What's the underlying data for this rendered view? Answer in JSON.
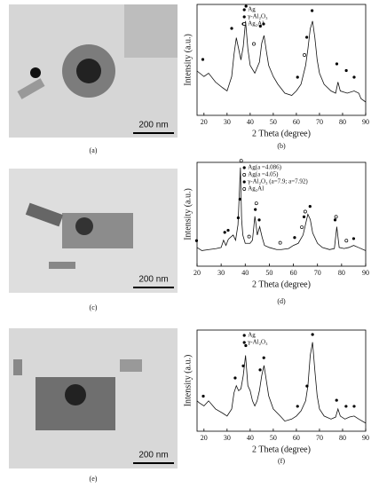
{
  "images": [
    {
      "scale_bar": "200 nm",
      "label": "(a)"
    },
    {
      "scale_bar": "200 nm",
      "label": "(c)"
    },
    {
      "scale_bar": "200 nm",
      "label": "(e)"
    }
  ],
  "chart_data": [
    {
      "type": "line",
      "label": "(b)",
      "xlabel": "2 Theta (degree)",
      "ylabel": "Intensity (a.u.)",
      "xlim": [
        17,
        90
      ],
      "ylim": [
        0,
        100
      ],
      "xticks": [
        20,
        30,
        40,
        50,
        60,
        70,
        80,
        90
      ],
      "color": "#111111",
      "legend": "upper center",
      "x": [
        17,
        20,
        22,
        25,
        28,
        30,
        32,
        33,
        34,
        35,
        36,
        37,
        38,
        39,
        40,
        42,
        44,
        45,
        46,
        47,
        48,
        50,
        52,
        55,
        58,
        60,
        62,
        64,
        65,
        66,
        67,
        68,
        69,
        70,
        72,
        75,
        77,
        78,
        79,
        82,
        85,
        87,
        88,
        90
      ],
      "values": [
        40,
        35,
        38,
        30,
        25,
        22,
        35,
        55,
        70,
        60,
        50,
        62,
        85,
        60,
        45,
        38,
        48,
        65,
        72,
        58,
        45,
        35,
        28,
        20,
        18,
        22,
        28,
        45,
        60,
        78,
        85,
        70,
        50,
        38,
        28,
        22,
        20,
        30,
        22,
        20,
        22,
        20,
        15,
        12
      ],
      "series": [
        {
          "name": "Ag",
          "color": "#000000",
          "marker": "filled",
          "x": [
            38.2,
            44.4,
            64.5,
            77.5,
            81.6
          ],
          "values": [
            96,
            78,
            68,
            44,
            38
          ]
        },
        {
          "name": "γ-Al₂O₃",
          "color": "#000000",
          "marker": "filled",
          "x": [
            19.5,
            32,
            37,
            45.8,
            60.5,
            66.8,
            85
          ],
          "values": [
            48,
            76,
            80,
            80,
            32,
            92,
            32
          ]
        },
        {
          "name": "Ag₂Al",
          "color": "#000000",
          "marker": "open",
          "x": [
            41.6,
            63.5
          ],
          "values": [
            62,
            52
          ]
        }
      ]
    },
    {
      "type": "line",
      "label": "(d)",
      "xlabel": "2 Theta (degree)",
      "ylabel": "Intensity (a.u.)",
      "xlim": [
        20,
        90
      ],
      "ylim": [
        0,
        100
      ],
      "xticks": [
        20,
        30,
        40,
        50,
        60,
        70,
        80,
        90
      ],
      "color": "#111111",
      "legend": "upper center",
      "x": [
        20,
        22,
        25,
        28,
        30,
        31,
        32,
        33,
        34,
        35,
        36,
        37,
        38,
        38.5,
        39,
        40,
        42,
        43,
        44,
        44.5,
        45,
        46,
        47,
        48,
        50,
        53,
        55,
        58,
        60,
        62,
        64,
        65,
        66,
        67,
        68,
        70,
        72,
        75,
        77,
        78,
        79,
        81,
        83,
        85,
        87,
        90
      ],
      "values": [
        18,
        15,
        16,
        17,
        18,
        25,
        20,
        26,
        28,
        30,
        25,
        40,
        95,
        45,
        30,
        22,
        22,
        25,
        48,
        40,
        30,
        38,
        28,
        20,
        18,
        16,
        16,
        17,
        20,
        22,
        30,
        40,
        50,
        45,
        32,
        22,
        18,
        16,
        17,
        38,
        18,
        17,
        18,
        20,
        18,
        15
      ],
      "series": [
        {
          "name": "Ag(a =4.086)",
          "color": "#000000",
          "marker": "filled",
          "x": [
            37.8,
            44.2,
            64.4,
            77.3
          ],
          "values": [
            62,
            52,
            45,
            42
          ]
        },
        {
          "name": "Ag(a =4.05)",
          "color": "#000000",
          "marker": "open",
          "x": [
            38.3,
            44.6,
            64.9,
            77.7
          ],
          "values": [
            99,
            58,
            50,
            45
          ]
        },
        {
          "name": "γ-Al₂O₃ (a=7.9; a=7.92)",
          "color": "#000000",
          "marker": "filled",
          "x": [
            19.8,
            31.5,
            32.9,
            37.1,
            45.8,
            60.5,
            66.9,
            85
          ],
          "values": [
            22,
            30,
            32,
            44,
            42,
            25,
            55,
            24
          ]
        },
        {
          "name": "Ag₂Al",
          "color": "#000000",
          "marker": "open",
          "x": [
            41.6,
            54.5,
            63.5,
            82
          ],
          "values": [
            26,
            20,
            35,
            22
          ]
        }
      ]
    },
    {
      "type": "line",
      "label": "(f)",
      "xlabel": "2 Theta (degree)",
      "ylabel": "Intensity (a.u.)",
      "xlim": [
        17,
        90
      ],
      "ylim": [
        0,
        100
      ],
      "xticks": [
        20,
        30,
        40,
        50,
        60,
        70,
        80,
        90
      ],
      "color": "#111111",
      "legend": "upper center",
      "x": [
        17,
        18,
        20,
        22,
        25,
        28,
        30,
        32,
        33,
        34,
        35,
        36,
        37,
        38,
        39,
        40,
        41,
        42,
        43,
        44,
        45,
        46,
        47,
        48,
        50,
        53,
        55,
        58,
        60,
        62,
        64,
        65,
        66,
        67,
        68,
        69,
        70,
        72,
        75,
        77,
        78,
        79,
        81,
        83,
        85,
        87,
        90
      ],
      "values": [
        30,
        28,
        25,
        30,
        22,
        18,
        15,
        22,
        38,
        45,
        40,
        42,
        55,
        75,
        45,
        40,
        30,
        25,
        30,
        40,
        55,
        65,
        50,
        35,
        22,
        15,
        10,
        12,
        15,
        20,
        30,
        45,
        75,
        88,
        60,
        35,
        22,
        15,
        12,
        14,
        22,
        15,
        12,
        14,
        15,
        12,
        8
      ],
      "series": [
        {
          "name": "Ag",
          "color": "#000000",
          "marker": "filled",
          "x": [
            38.1,
            44.3,
            64.6,
            77.4,
            81.5
          ],
          "values": [
            82,
            58,
            42,
            28,
            22
          ]
        },
        {
          "name": "γ-Al₂O₃",
          "color": "#000000",
          "marker": "filled",
          "x": [
            19.7,
            33.5,
            37,
            45.9,
            60.5,
            67,
            85
          ],
          "values": [
            32,
            50,
            62,
            70,
            22,
            93,
            22
          ]
        }
      ]
    }
  ]
}
